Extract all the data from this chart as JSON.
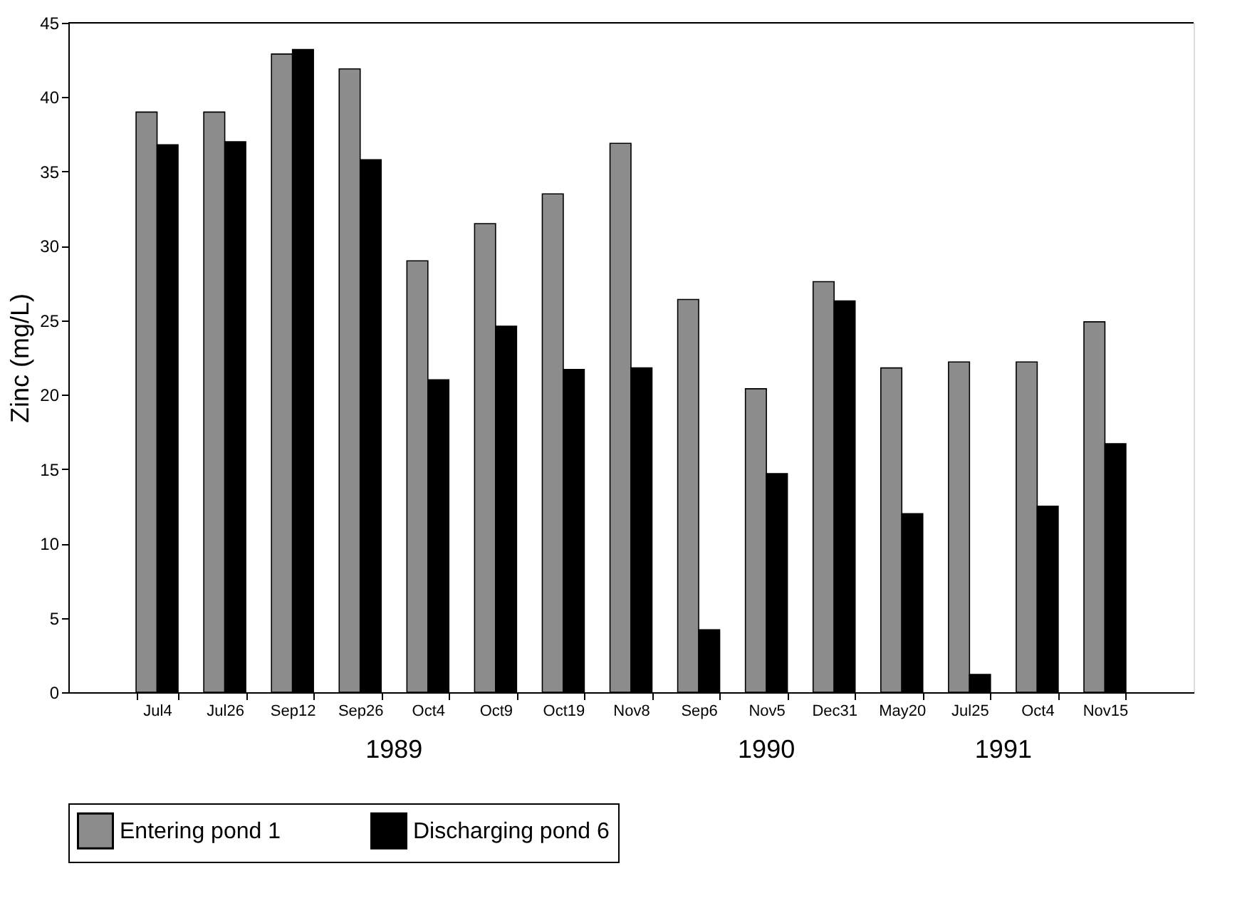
{
  "chart_data": {
    "type": "bar",
    "ylabel": "Zinc (mg/L)",
    "categories": [
      "Jul4",
      "Jul26",
      "Sep12",
      "Sep26",
      "Oct4",
      "Oct9",
      "Oct19",
      "Nov8",
      "Sep6",
      "Nov5",
      "Dec31",
      "May20",
      "Jul25",
      "Oct4",
      "Nov15"
    ],
    "series": [
      {
        "name": "Entering pond 1",
        "color": "#8c8c8c",
        "values": [
          39.0,
          39.0,
          42.9,
          41.9,
          29.0,
          31.5,
          33.5,
          36.9,
          26.4,
          20.4,
          27.6,
          21.8,
          22.2,
          22.2,
          24.9
        ]
      },
      {
        "name": "Discharging pond 6",
        "color": "#000000",
        "values": [
          36.8,
          37.0,
          43.2,
          35.8,
          21.0,
          24.6,
          21.7,
          21.8,
          4.2,
          14.7,
          26.3,
          12.0,
          1.2,
          12.5,
          16.7
        ]
      }
    ],
    "ylim": [
      0,
      45
    ],
    "yticks": [
      0,
      5,
      10,
      15,
      20,
      25,
      30,
      35,
      40,
      45
    ],
    "annotations": [
      "1989",
      "1990",
      "1991"
    ],
    "grid": false,
    "legend": "bottom"
  }
}
